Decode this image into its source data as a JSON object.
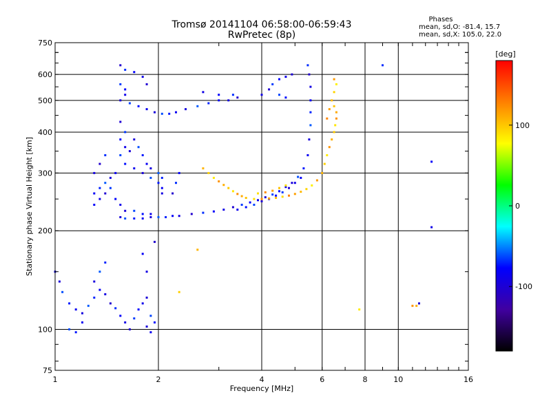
{
  "chart_data": {
    "type": "scatter",
    "title": "Tromsø 20141104 06:58:00-06:59:43",
    "subtitle": "RwPretec (8p)",
    "xlabel": "Frequency [MHz]",
    "ylabel": "Stationary phase Virtual Height [km]",
    "x_scale": "log",
    "y_scale": "log",
    "xlim": [
      1,
      16
    ],
    "ylim": [
      75,
      750
    ],
    "x_ticks": [
      1,
      2,
      4,
      6,
      8,
      10,
      16
    ],
    "y_ticks": [
      75,
      100,
      200,
      300,
      400,
      500,
      600,
      750
    ],
    "grid": true,
    "phase_box": {
      "title": "Phases",
      "line_o": "mean, sd,O: -81.4, 15.7",
      "line_x": "mean, sd,X: 105.0, 22.0"
    },
    "colorbar": {
      "label": "[deg]",
      "range": [
        -180,
        180
      ],
      "ticks": [
        100,
        0,
        -100
      ],
      "colors": [
        "#ff0000",
        "#ff8000",
        "#ffff00",
        "#00ff00",
        "#00ffff",
        "#0000ff",
        "#4000a0",
        "#000000"
      ]
    },
    "series": [
      {
        "mode": "O",
        "phase_mean": -81.4,
        "points": [
          [
            1.55,
            640
          ],
          [
            1.6,
            620
          ],
          [
            1.7,
            610
          ],
          [
            1.8,
            590
          ],
          [
            1.85,
            560
          ],
          [
            1.55,
            560
          ],
          [
            1.6,
            540
          ],
          [
            1.6,
            520
          ],
          [
            1.55,
            500
          ],
          [
            1.65,
            490
          ],
          [
            1.75,
            480
          ],
          [
            1.85,
            470
          ],
          [
            1.95,
            460
          ],
          [
            2.05,
            455
          ],
          [
            2.15,
            455
          ],
          [
            2.25,
            460
          ],
          [
            2.4,
            470
          ],
          [
            2.6,
            480
          ],
          [
            2.8,
            490
          ],
          [
            3.0,
            500
          ],
          [
            3.2,
            500
          ],
          [
            3.4,
            510
          ],
          [
            3.3,
            520
          ],
          [
            3.0,
            520
          ],
          [
            2.7,
            530
          ],
          [
            1.55,
            430
          ],
          [
            1.6,
            400
          ],
          [
            1.55,
            380
          ],
          [
            1.6,
            360
          ],
          [
            1.65,
            350
          ],
          [
            1.55,
            340
          ],
          [
            1.6,
            320
          ],
          [
            1.7,
            310
          ],
          [
            1.8,
            300
          ],
          [
            1.9,
            290
          ],
          [
            2.0,
            280
          ],
          [
            1.5,
            300
          ],
          [
            1.45,
            290
          ],
          [
            1.4,
            280
          ],
          [
            1.35,
            270
          ],
          [
            1.3,
            260
          ],
          [
            1.3,
            300
          ],
          [
            1.35,
            320
          ],
          [
            1.4,
            340
          ],
          [
            1.3,
            240
          ],
          [
            1.35,
            250
          ],
          [
            1.4,
            260
          ],
          [
            1.45,
            270
          ],
          [
            1.5,
            250
          ],
          [
            1.55,
            240
          ],
          [
            1.6,
            230
          ],
          [
            1.7,
            230
          ],
          [
            1.8,
            225
          ],
          [
            1.9,
            225
          ],
          [
            1.55,
            220
          ],
          [
            1.6,
            218
          ],
          [
            1.7,
            218
          ],
          [
            1.8,
            218
          ],
          [
            1.9,
            220
          ],
          [
            2.0,
            220
          ],
          [
            2.1,
            220
          ],
          [
            2.2,
            222
          ],
          [
            2.3,
            222
          ],
          [
            2.5,
            225
          ],
          [
            2.7,
            227
          ],
          [
            2.9,
            229
          ],
          [
            3.1,
            232
          ],
          [
            3.3,
            236
          ],
          [
            3.5,
            240
          ],
          [
            3.7,
            244
          ],
          [
            3.9,
            248
          ],
          [
            4.1,
            253
          ],
          [
            4.3,
            258
          ],
          [
            4.5,
            264
          ],
          [
            4.7,
            272
          ],
          [
            4.9,
            280
          ],
          [
            5.1,
            292
          ],
          [
            5.3,
            310
          ],
          [
            5.45,
            340
          ],
          [
            5.5,
            380
          ],
          [
            5.55,
            420
          ],
          [
            5.55,
            460
          ],
          [
            5.55,
            500
          ],
          [
            5.55,
            550
          ],
          [
            5.5,
            600
          ],
          [
            5.45,
            640
          ],
          [
            5.2,
            290
          ],
          [
            5.0,
            280
          ],
          [
            4.8,
            270
          ],
          [
            4.6,
            262
          ],
          [
            4.4,
            256
          ],
          [
            4.2,
            250
          ],
          [
            4.0,
            246
          ],
          [
            3.8,
            240
          ],
          [
            3.6,
            236
          ],
          [
            3.4,
            232
          ],
          [
            1.7,
            380
          ],
          [
            1.75,
            360
          ],
          [
            1.8,
            340
          ],
          [
            1.85,
            320
          ],
          [
            1.9,
            310
          ],
          [
            2.0,
            300
          ],
          [
            2.05,
            290
          ],
          [
            2.05,
            270
          ],
          [
            2.05,
            260
          ],
          [
            2.2,
            260
          ],
          [
            2.25,
            280
          ],
          [
            2.3,
            300
          ],
          [
            4.0,
            520
          ],
          [
            4.2,
            540
          ],
          [
            4.3,
            560
          ],
          [
            4.5,
            580
          ],
          [
            4.7,
            590
          ],
          [
            4.9,
            600
          ],
          [
            4.5,
            520
          ],
          [
            4.7,
            510
          ],
          [
            1.0,
            150
          ],
          [
            1.03,
            140
          ],
          [
            1.05,
            130
          ],
          [
            1.1,
            120
          ],
          [
            1.15,
            115
          ],
          [
            1.2,
            112
          ],
          [
            1.25,
            118
          ],
          [
            1.3,
            125
          ],
          [
            1.35,
            132
          ],
          [
            1.4,
            128
          ],
          [
            1.45,
            120
          ],
          [
            1.5,
            116
          ],
          [
            1.55,
            110
          ],
          [
            1.6,
            105
          ],
          [
            1.65,
            100
          ],
          [
            1.7,
            108
          ],
          [
            1.75,
            115
          ],
          [
            1.8,
            120
          ],
          [
            1.85,
            125
          ],
          [
            1.9,
            110
          ],
          [
            1.95,
            105
          ],
          [
            1.9,
            98
          ],
          [
            1.85,
            102
          ],
          [
            1.1,
            100
          ],
          [
            1.15,
            98
          ],
          [
            1.2,
            105
          ],
          [
            1.3,
            140
          ],
          [
            1.35,
            150
          ],
          [
            1.4,
            160
          ],
          [
            1.8,
            170
          ],
          [
            1.85,
            150
          ],
          [
            1.95,
            185
          ],
          [
            9.0,
            640
          ],
          [
            12.5,
            325
          ],
          [
            12.5,
            205
          ],
          [
            11.5,
            120
          ]
        ]
      },
      {
        "mode": "X",
        "phase_mean": 105.0,
        "points": [
          [
            2.7,
            310
          ],
          [
            2.8,
            300
          ],
          [
            2.9,
            290
          ],
          [
            3.0,
            283
          ],
          [
            3.1,
            276
          ],
          [
            3.2,
            270
          ],
          [
            3.3,
            264
          ],
          [
            3.4,
            259
          ],
          [
            3.5,
            255
          ],
          [
            3.6,
            252
          ],
          [
            3.8,
            250
          ],
          [
            4.0,
            250
          ],
          [
            4.2,
            251
          ],
          [
            4.4,
            252
          ],
          [
            4.6,
            254
          ],
          [
            4.8,
            256
          ],
          [
            5.0,
            259
          ],
          [
            5.2,
            263
          ],
          [
            5.4,
            268
          ],
          [
            5.6,
            275
          ],
          [
            5.8,
            285
          ],
          [
            6.0,
            300
          ],
          [
            6.1,
            320
          ],
          [
            6.2,
            340
          ],
          [
            6.3,
            360
          ],
          [
            6.4,
            380
          ],
          [
            6.5,
            400
          ],
          [
            6.55,
            420
          ],
          [
            6.6,
            440
          ],
          [
            6.6,
            460
          ],
          [
            6.5,
            480
          ],
          [
            3.9,
            260
          ],
          [
            4.1,
            262
          ],
          [
            4.3,
            265
          ],
          [
            4.5,
            270
          ],
          [
            4.7,
            275
          ],
          [
            6.2,
            440
          ],
          [
            6.3,
            470
          ],
          [
            6.4,
            500
          ],
          [
            6.5,
            530
          ],
          [
            6.6,
            560
          ],
          [
            6.5,
            580
          ],
          [
            2.6,
            175
          ],
          [
            2.3,
            130
          ],
          [
            7.7,
            115
          ],
          [
            11.0,
            118
          ],
          [
            11.3,
            118
          ]
        ]
      }
    ]
  }
}
